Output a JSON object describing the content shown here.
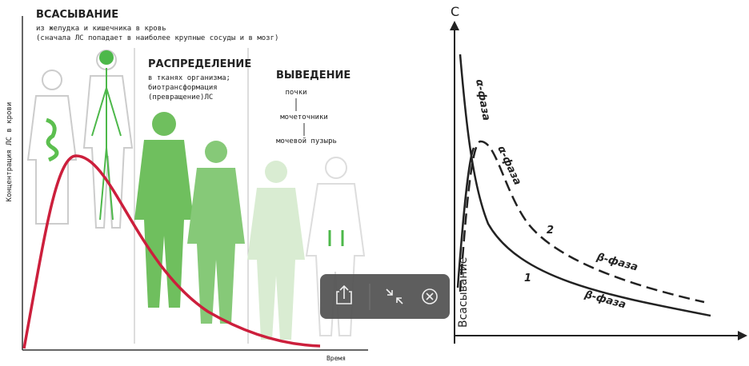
{
  "left_diagram": {
    "absorption": {
      "title": "ВСАСЫВАНИЕ",
      "line1": "из желудка и кишечника в кровь",
      "line2": "(сначала ЛС попадает в наиболее крупные сосуды и в мозг)"
    },
    "distribution": {
      "title": "РАСПРЕДЕЛЕНИЕ",
      "lines": [
        "в тканях организма;",
        "биотрансформация",
        "(превращение)ЛС"
      ]
    },
    "elimination": {
      "title": "ВЫВЕДЕНИЕ",
      "steps": [
        "почки",
        "мочеточники",
        "мочевой пузырь"
      ]
    },
    "y_label": "Концентрация ЛС в крови",
    "x_label": "Время"
  },
  "right_diagram": {
    "y_label": "C",
    "alpha_phase_1": "α-фаза",
    "alpha_phase_2": "α-фаза",
    "curve_2_label": "2",
    "curve_1_label": "1",
    "beta_phase_2": "β-фаза",
    "beta_phase_1": "β-фаза",
    "absorption": "Всасывание"
  }
}
